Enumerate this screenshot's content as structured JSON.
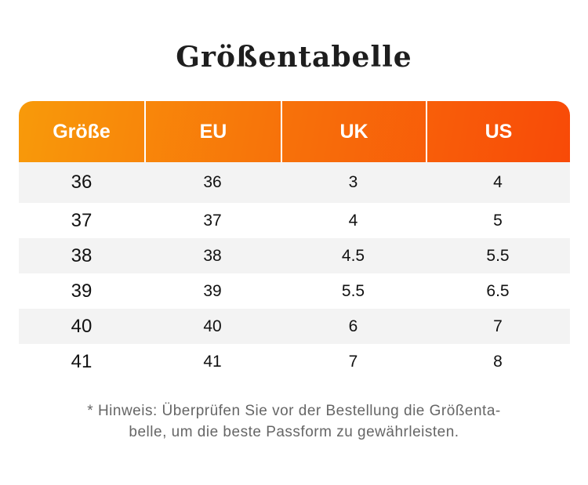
{
  "title": "Größentabelle",
  "headers": [
    "Größe",
    "EU",
    "UK",
    "US"
  ],
  "rows": [
    [
      "36",
      "36",
      "3",
      "4"
    ],
    [
      "37",
      "37",
      "4",
      "5"
    ],
    [
      "38",
      "38",
      "4.5",
      "5.5"
    ],
    [
      "39",
      "39",
      "5.5",
      "6.5"
    ],
    [
      "40",
      "40",
      "6",
      "7"
    ],
    [
      "41",
      "41",
      "7",
      "8"
    ]
  ],
  "note": {
    "line1": "* Hinweis: Überprüfen Sie vor der Bestellung die Größenta-",
    "line2": "belle, um die beste Passform zu gewährleisten."
  }
}
